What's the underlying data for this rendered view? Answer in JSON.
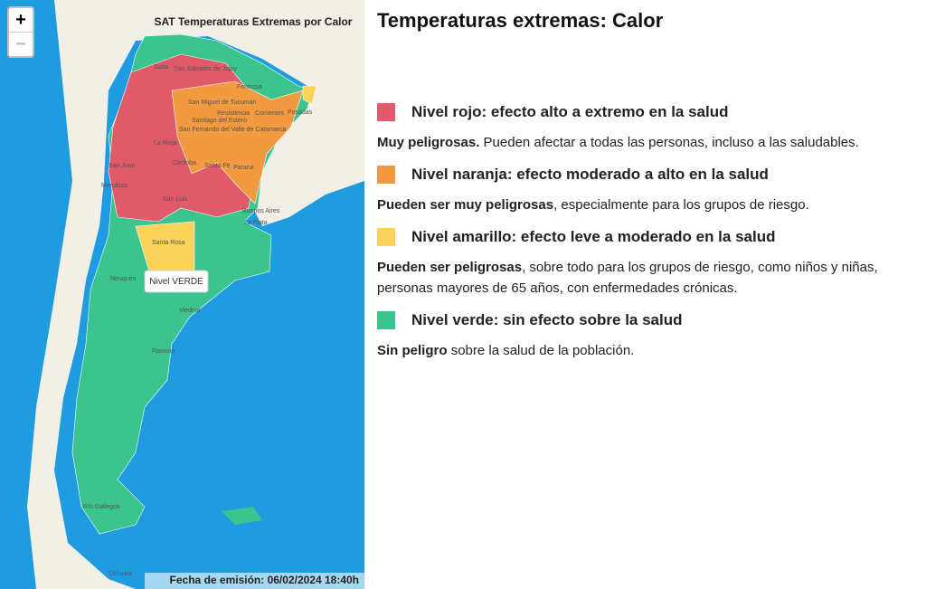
{
  "map": {
    "title": "SAT Temperaturas Extremas por Calor",
    "zoom_in": "+",
    "zoom_out": "−",
    "tooltip": "Nivel VERDE",
    "footer": "Fecha de emisión: 06/02/2024 18:40h",
    "places": [
      "Salta",
      "San Salvador de Jujuy",
      "Formosa",
      "San Miguel de Tucumán",
      "Resistencia",
      "Corrientes",
      "Posadas",
      "Santiago del Estero",
      "San Fernando del Valle de Catamarca",
      "La Rioja",
      "Córdoba",
      "San Juan",
      "Mendoza",
      "Santa Fe",
      "Paraná",
      "San Luis",
      "Buenos Aires",
      "La Plata",
      "Santa Rosa",
      "Neuquén",
      "Viedma",
      "Rawson",
      "Río Gallegos",
      "Ushuaia"
    ]
  },
  "legend": {
    "title": "Temperaturas extremas: Calor",
    "levels": [
      {
        "title": "Nivel rojo: efecto alto a extremo en la salud",
        "color": "#e05a6a",
        "lead": "Muy peligrosas.",
        "text": "Pueden afectar a todas las personas, incluso a las saludables."
      },
      {
        "title": "Nivel naranja: efecto moderado a alto en la salud",
        "color": "#f29a3f",
        "lead": "Pueden ser muy peligrosas",
        "text": ", especialmente para los grupos de riesgo."
      },
      {
        "title": "Nivel amarillo: efecto leve a moderado en la salud",
        "color": "#fbd35a",
        "lead": "Pueden ser peligrosas",
        "text": ", sobre todo para los grupos de riesgo, como niños y niñas, personas mayores de 65 años, con enfermedades crónicas."
      },
      {
        "title": "Nivel verde: sin efecto sobre la salud",
        "color": "#3cc48e",
        "lead": "Sin peligro",
        "text": "sobre la salud de la población."
      }
    ]
  }
}
